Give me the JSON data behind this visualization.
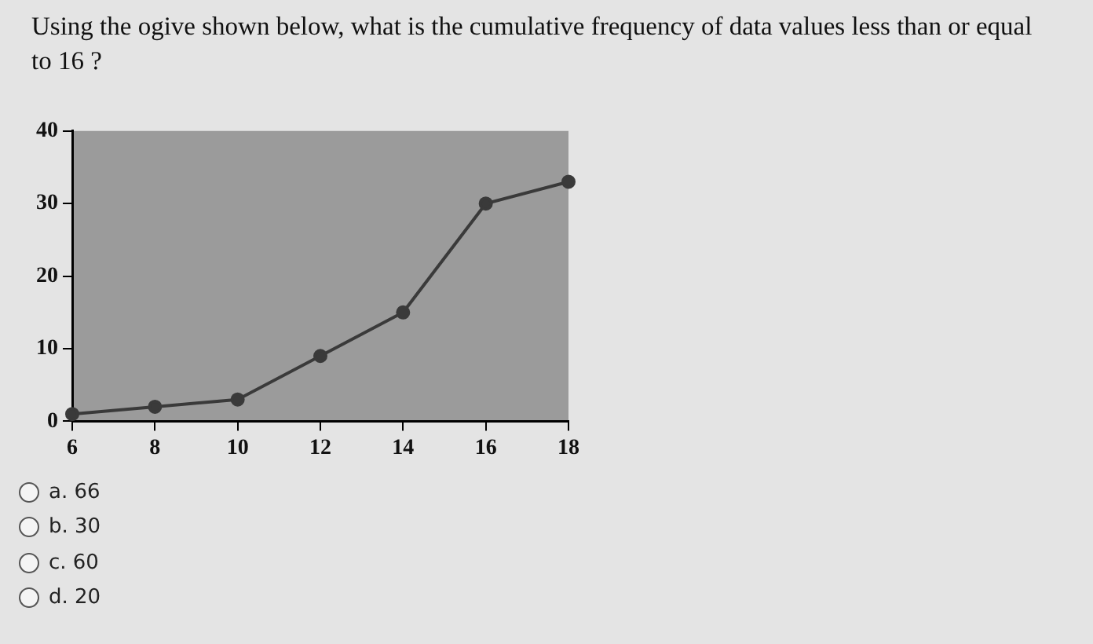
{
  "chart_data": {
    "type": "line",
    "title": "Using the ogive shown below, what is the cumulative frequency of data values less than or equal to 16 ?",
    "x": [
      6,
      8,
      10,
      12,
      14,
      16,
      18
    ],
    "series": [
      {
        "color": "#3a3a3a",
        "values": [
          1,
          2,
          3,
          9,
          15,
          30,
          33
        ]
      }
    ],
    "xlim": [
      6,
      18
    ],
    "xticks": [
      6,
      8,
      10,
      12,
      14,
      16,
      18
    ],
    "ylim": [
      0,
      40
    ],
    "yticks": [
      0,
      10,
      20,
      30,
      40
    ],
    "grid": false,
    "legend": false,
    "marker": "circle",
    "line_style": "solid",
    "annotations": [
      "a. 66",
      "b. 30",
      "c. 60",
      "d. 20"
    ]
  }
}
